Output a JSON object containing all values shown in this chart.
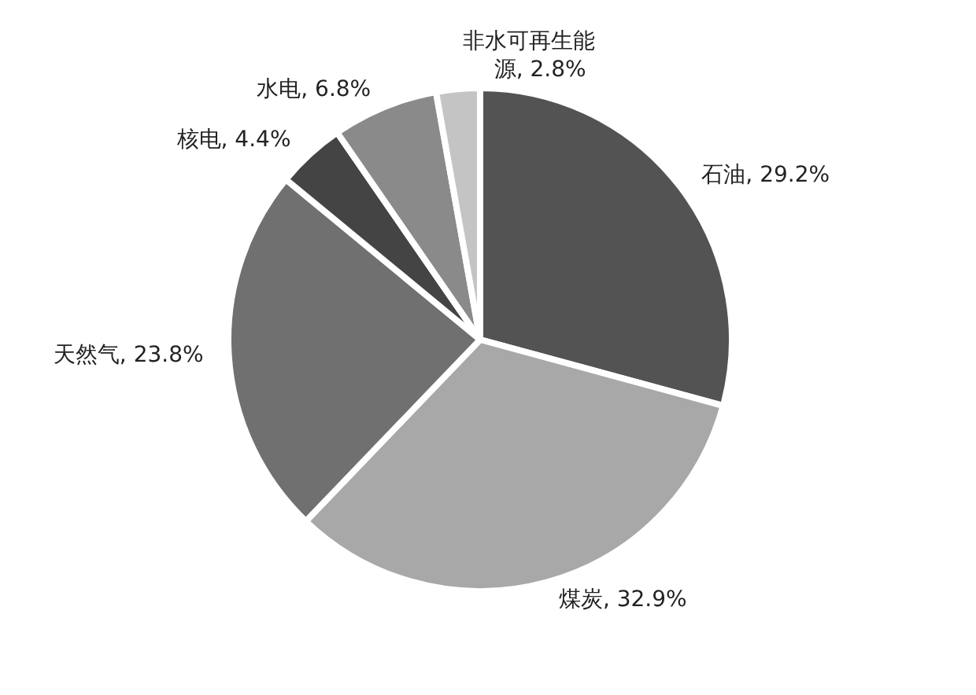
{
  "chart_data": {
    "type": "pie",
    "categories": [
      "石油",
      "煤炭",
      "天然气",
      "核电",
      "水电",
      "非水可再生能源"
    ],
    "values": [
      29.2,
      32.9,
      23.8,
      4.4,
      6.8,
      2.8
    ],
    "colors": [
      "#545354",
      "#a8a8a8",
      "#707070",
      "#444444",
      "#8a8a8a",
      "#c4c4c4"
    ],
    "value_labels": [
      "29.2%",
      "32.9%",
      "23.8%",
      "4.4%",
      "6.8%",
      "2.8%"
    ]
  }
}
